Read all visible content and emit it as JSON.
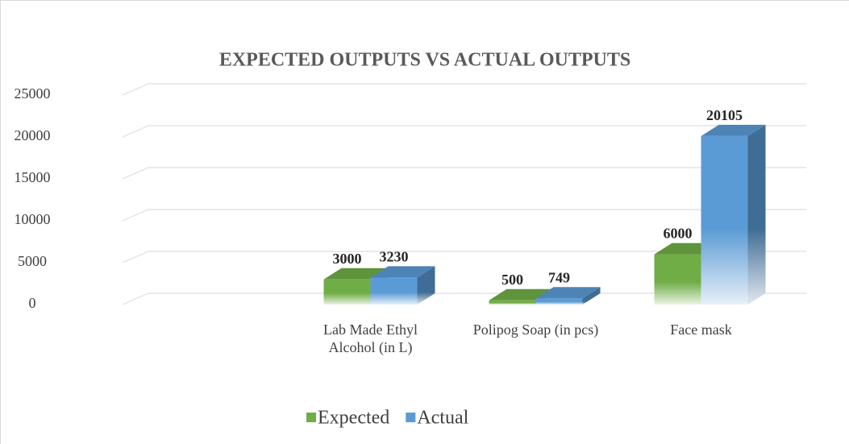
{
  "chart_data": {
    "type": "bar3d",
    "title": "EXPECTED OUTPUTS VS ACTUAL OUTPUTS",
    "categories": [
      null,
      "Lab Made Ethyl Alcohol (in L)",
      "Polipog Soap (in pcs)",
      "Face mask"
    ],
    "series": [
      {
        "name": "Expected",
        "color": "#70ad47",
        "values": [
          null,
          3000,
          500,
          6000
        ]
      },
      {
        "name": "Actual",
        "color": "#5b9bd5",
        "values": [
          null,
          3230,
          749,
          20105
        ]
      }
    ],
    "ylim": [
      0,
      25000
    ],
    "yticks": [
      0,
      5000,
      10000,
      15000,
      20000,
      25000
    ],
    "grid": true,
    "legend": "bottom"
  }
}
